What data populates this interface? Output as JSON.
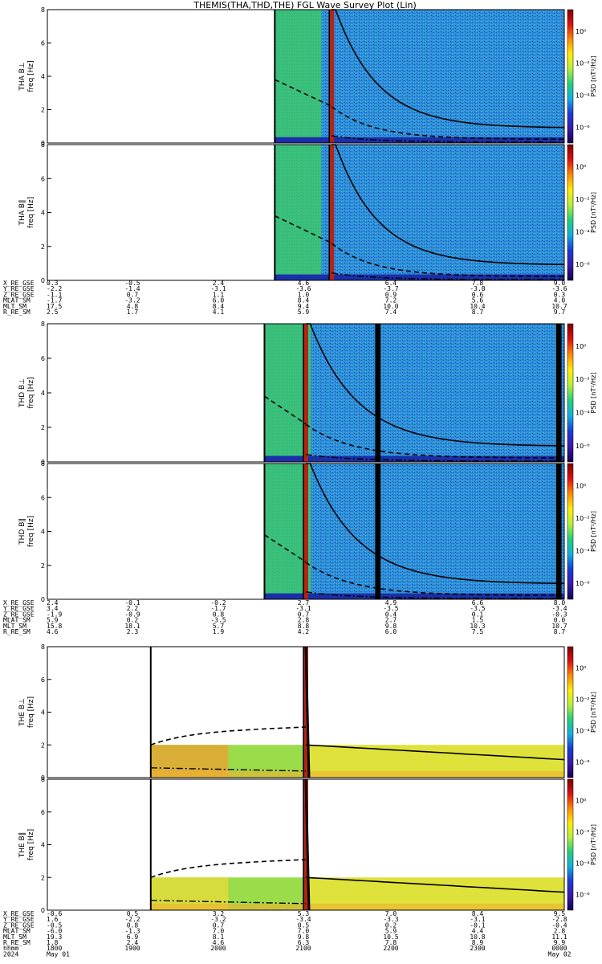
{
  "title": "THEMIS(THA,THD,THE) FGL Wave Survey Plot (Lin)",
  "colors": {
    "bg_low": "#1c3ddb",
    "bg_mid": "#2f8fd8",
    "bg_green": "#3cc86b",
    "bg_yellow": "#e4ea3c",
    "band_red": "#b32417",
    "line": "#000000"
  },
  "colorbar": {
    "label": "PSD [nT²/Hz]",
    "ticks": [
      "10⁰",
      "10⁻²",
      "10⁻⁴",
      "10⁻⁶"
    ],
    "stops": [
      "#7a0000",
      "#e01010",
      "#ff8a00",
      "#ffee00",
      "#b7f03a",
      "#20d27a",
      "#10b0e0",
      "#1a3bd8",
      "#3a1aa8",
      "#120050"
    ]
  },
  "chart_data": [
    {
      "type": "heatmap",
      "probe": "THA",
      "panels": [
        {
          "name": "THA B⊥",
          "ylabel": "THA B⊥\nfreq [Hz]",
          "ylim": [
            0,
            8
          ],
          "yticks": [
            "0",
            "2",
            "4",
            "6",
            "8"
          ],
          "data_start": 0.44,
          "data_end": 1.0,
          "spikes": [
            0.55
          ],
          "fce_curve": "decay"
        },
        {
          "name": "THA B‖",
          "ylabel": "THA B‖\nfreq [Hz]",
          "ylim": [
            0,
            8
          ],
          "yticks": [
            "0",
            "2",
            "4",
            "6",
            "8"
          ],
          "data_start": 0.44,
          "data_end": 1.0,
          "spikes": [
            0.55
          ],
          "fce_curve": "decay"
        }
      ],
      "ephemeris": {
        "labels": [
          "X_RE_GSE",
          "Y_RE_GSE",
          "Z_RE_GSE",
          "MLAT_SM",
          "MLT_SM",
          "R_RE_SM"
        ],
        "columns": [
          [
            "0.3",
            "-2.2",
            "-1.1",
            "-1.7",
            "17.5",
            "2.5"
          ],
          [
            "-0.5",
            "-1.4",
            "0.7",
            "-3.2",
            "4.8",
            "1.7"
          ],
          [
            "2.4",
            "-3.1",
            "1.1",
            "6.0",
            "8.4",
            "4.1"
          ],
          [
            "4.6",
            "-3.6",
            "1.0",
            "8.4",
            "9.4",
            "5.9"
          ],
          [
            "6.4",
            "-3.7",
            "0.9",
            "7.2",
            "10.0",
            "7.4"
          ],
          [
            "7.8",
            "-3.8",
            "0.6",
            "5.6",
            "10.4",
            "8.7"
          ],
          [
            "9.0",
            "-3.6",
            "0.3",
            "4.0",
            "10.7",
            "9.7"
          ]
        ]
      }
    },
    {
      "type": "heatmap",
      "probe": "THD",
      "panels": [
        {
          "name": "THD B⊥",
          "ylabel": "THD B⊥\nfreq [Hz]",
          "ylim": [
            0,
            8
          ],
          "yticks": [
            "0",
            "2",
            "4",
            "6",
            "8"
          ],
          "data_start": 0.42,
          "data_end": 1.0,
          "spikes": [
            0.5,
            0.64,
            0.99
          ],
          "fce_curve": "decay"
        },
        {
          "name": "THD B‖",
          "ylabel": "THD B‖\nfreq [Hz]",
          "ylim": [
            0,
            8
          ],
          "yticks": [
            "0",
            "2",
            "4",
            "6",
            "8"
          ],
          "data_start": 0.42,
          "data_end": 1.0,
          "spikes": [
            0.5,
            0.64,
            0.99
          ],
          "fce_curve": "decay"
        }
      ],
      "ephemeris": {
        "labels": [
          "X_RE_GSE",
          "Y_RE_GSE",
          "Z_RE_GSE",
          "MLAT_SM",
          "MLT_SM",
          "R_RE_SM"
        ],
        "columns": [
          [
            "2.4",
            "3.4",
            "-1.9",
            "5.9",
            "15.8",
            "4.6"
          ],
          [
            "-0.1",
            "2.2",
            "-0.9",
            "0.2",
            "18.1",
            "2.3"
          ],
          [
            "-0.2",
            "-1.7",
            "0.8",
            "-3.5",
            "5.7",
            "1.9"
          ],
          [
            "2.7",
            "-3.1",
            "0.7",
            "2.8",
            "8.8",
            "4.2"
          ],
          [
            "4.9",
            "-3.5",
            "0.4",
            "2.7",
            "9.8",
            "6.0"
          ],
          [
            "6.6",
            "-3.5",
            "0.1",
            "1.5",
            "10.3",
            "7.5"
          ],
          [
            "8.0",
            "-3.4",
            "-0.3",
            "0.0",
            "10.7",
            "8.7"
          ]
        ]
      }
    },
    {
      "type": "heatmap",
      "probe": "THE",
      "panels": [
        {
          "name": "THE B⊥",
          "ylabel": "THE B⊥\nfreq [Hz]",
          "ylim": [
            0,
            8
          ],
          "yticks": [
            "0",
            "2",
            "4",
            "6",
            "8"
          ],
          "data_start": 0.2,
          "data_end": 1.0,
          "band_top_hz": 2.0,
          "spikes": [
            0.5
          ],
          "fce_curve": "flat"
        },
        {
          "name": "THE B‖",
          "ylabel": "THE B‖\nfreq [Hz]",
          "ylim": [
            0,
            8
          ],
          "yticks": [
            "0",
            "2",
            "4",
            "6",
            "8"
          ],
          "data_start": 0.2,
          "data_end": 1.0,
          "band_top_hz": 2.0,
          "spikes": [
            0.5
          ],
          "fce_curve": "flat"
        }
      ],
      "ephemeris": {
        "labels": [
          "X_RE_GSE",
          "Y_RE_GSE",
          "Z_RE_GSE",
          "MLAT_SM",
          "MLT_SM",
          "R_RE_SM",
          "hhmm",
          "2024"
        ],
        "columns": [
          [
            "-0.6",
            "1.6",
            "-0.5",
            "-6.0",
            "19.3",
            "1.8",
            "1800",
            "May 01"
          ],
          [
            "0.5",
            "-2.2",
            "0.8",
            "-1.3",
            "6.9",
            "2.4",
            "1900",
            ""
          ],
          [
            "3.2",
            "-3.2",
            "0.7",
            "7.0",
            "8.1",
            "4.6",
            "2000",
            ""
          ],
          [
            "5.3",
            "-3.4",
            "0.5",
            "7.0",
            "9.8",
            "6.3",
            "2100",
            ""
          ],
          [
            "7.0",
            "-3.3",
            "0.2",
            "5.9",
            "10.5",
            "7.8",
            "2200",
            ""
          ],
          [
            "8.4",
            "-3.1",
            "-0.1",
            "4.4",
            "10.8",
            "8.9",
            "2300",
            ""
          ],
          [
            "9.5",
            "-2.8",
            "-0.4",
            "2.8",
            "11.1",
            "9.9",
            "0000",
            "May 02"
          ]
        ]
      }
    }
  ]
}
